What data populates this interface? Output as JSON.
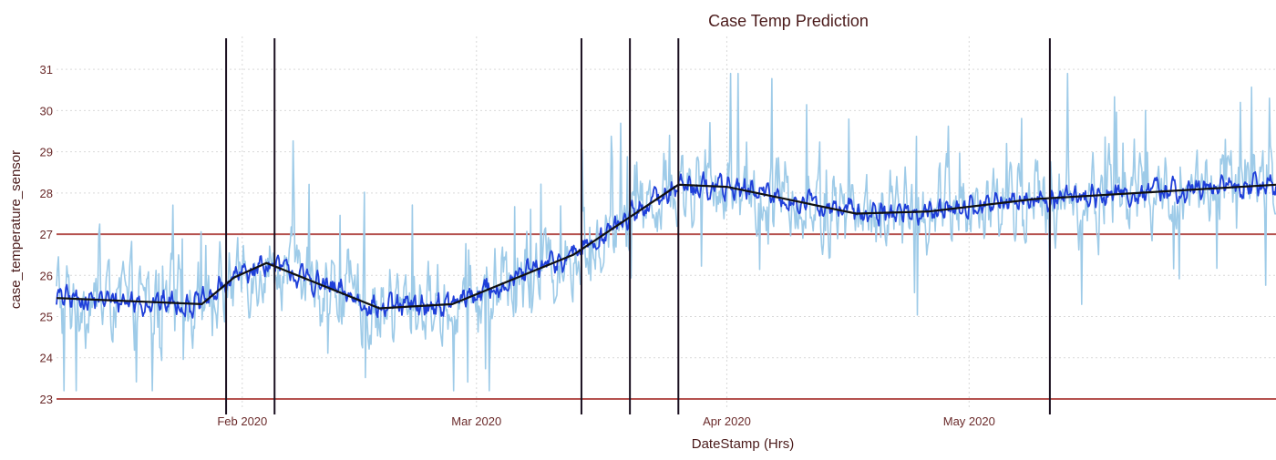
{
  "chart_data": {
    "type": "line",
    "title": "Case Temp Prediction",
    "xlabel": "DateStamp (Hrs)",
    "ylabel": "case_temperature_sensor",
    "x_range": [
      "2020-01-09",
      "2020-06-08"
    ],
    "ylim": [
      22.8,
      31.8
    ],
    "y_ticks": [
      23,
      24,
      25,
      26,
      27,
      28,
      29,
      30,
      31
    ],
    "x_ticks": [
      {
        "date": "2020-02-01",
        "label": "Feb 2020"
      },
      {
        "date": "2020-03-01",
        "label": "Mar 2020"
      },
      {
        "date": "2020-04-01",
        "label": "Apr 2020"
      },
      {
        "date": "2020-05-01",
        "label": "May 2020"
      }
    ],
    "grid": true,
    "threshold_lines": [
      23,
      27
    ],
    "event_lines": [
      "2020-01-30",
      "2020-02-05",
      "2020-03-14",
      "2020-03-20",
      "2020-03-26",
      "2020-05-11"
    ],
    "trend": {
      "x": [
        "2020-01-09",
        "2020-01-27",
        "2020-01-31",
        "2020-02-04",
        "2020-02-18",
        "2020-02-27",
        "2020-03-13",
        "2020-03-26",
        "2020-04-01",
        "2020-04-17",
        "2020-04-26",
        "2020-05-09",
        "2020-06-08"
      ],
      "y": [
        25.45,
        25.3,
        25.95,
        26.3,
        25.2,
        25.3,
        26.5,
        28.2,
        28.15,
        27.5,
        27.55,
        27.85,
        28.2
      ]
    },
    "series": [
      {
        "type": "raw",
        "color": "#9ecbe8",
        "noise": 0.95,
        "spike_prob": 0.07,
        "spike_size": 1.8,
        "points": 1300
      },
      {
        "type": "smoothed",
        "color": "#1f3fd9",
        "noise": 0.28,
        "spike_prob": 0,
        "spike_size": 0,
        "points": 1300
      },
      {
        "type": "trend",
        "color": "#111111"
      }
    ],
    "colors": {
      "threshold": "#b5524f",
      "event": "#1a0f1f",
      "raw": "#9ecbe8",
      "smoothed": "#1f3fd9",
      "trend": "#111111"
    }
  }
}
